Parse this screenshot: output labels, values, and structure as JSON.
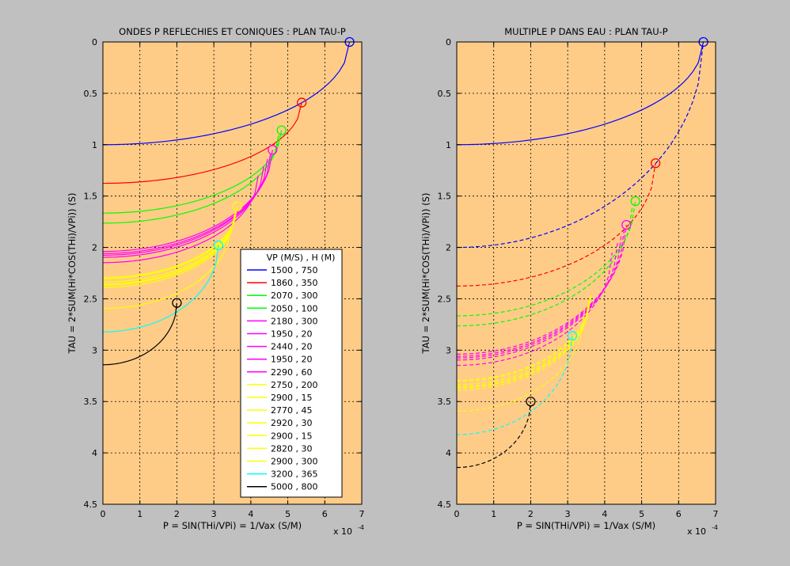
{
  "figure": {
    "background": "#c0c0c0",
    "axes_bg": "#ffcc88"
  },
  "legend": {
    "header": "VP (M/S) , H (M)",
    "entries": [
      {
        "label": "1500 , 750",
        "color": "#0000ff"
      },
      {
        "label": "1860 , 350",
        "color": "#ff0000"
      },
      {
        "label": "2070 , 300",
        "color": "#00ff00"
      },
      {
        "label": "2050 , 100",
        "color": "#00ff00"
      },
      {
        "label": "2180 , 300",
        "color": "#ff00ff"
      },
      {
        "label": "1950 , 20",
        "color": "#ff00ff"
      },
      {
        "label": "2440 , 20",
        "color": "#ff00ff"
      },
      {
        "label": "1950 , 20",
        "color": "#ff00ff"
      },
      {
        "label": "2290 , 60",
        "color": "#ff00ff"
      },
      {
        "label": "2750 , 200",
        "color": "#ffff00"
      },
      {
        "label": "2900 , 15",
        "color": "#ffff00"
      },
      {
        "label": "2770 , 45",
        "color": "#ffff00"
      },
      {
        "label": "2920 , 30",
        "color": "#ffff00"
      },
      {
        "label": "2900 , 15",
        "color": "#ffff00"
      },
      {
        "label": "2820 , 30",
        "color": "#ffff00"
      },
      {
        "label": "2900 , 300",
        "color": "#ffff00"
      },
      {
        "label": "3200 , 365",
        "color": "#00ffff"
      },
      {
        "label": "5000 , 800",
        "color": "#000000"
      }
    ]
  },
  "chart_data": [
    {
      "type": "line",
      "title": "ONDES P REFLECHIES ET CONIQUES : PLAN TAU-P",
      "xlabel": "P = SIN(THi/VPi) = 1/Vax (S/M)",
      "ylabel": "TAU = 2*SUM(Hi*COS(THi)/VPi)) (S)",
      "x_multiplier": "x 10",
      "x_exponent": "-4",
      "xlim": [
        0,
        7
      ],
      "ylim": [
        0,
        4.5
      ],
      "y_reversed": true,
      "xticks": [
        "0",
        "1",
        "2",
        "3",
        "4",
        "5",
        "6",
        "7"
      ],
      "yticks": [
        "0",
        "0.5",
        "1",
        "1.5",
        "2",
        "2.5",
        "3",
        "3.5",
        "4",
        "4.5"
      ],
      "grid": true,
      "line_style": "solid",
      "series": [
        {
          "color": "#0000ff",
          "tau0": 1.0,
          "pend": 6.67,
          "tauend": 0.0
        },
        {
          "color": "#ff0000",
          "tau0": 1.376,
          "pend": 5.376,
          "tauend": 0.59
        },
        {
          "color": "#00ff00",
          "tau0": 1.666,
          "pend": 4.831,
          "tauend": 0.86
        },
        {
          "color": "#00ff00",
          "tau0": 1.764,
          "pend": 4.75,
          "tauend": 0.91
        },
        {
          "color": "#ff00ff",
          "tau0": 2.039,
          "pend": 4.587,
          "tauend": 1.05
        },
        {
          "color": "#ff00ff",
          "tau0": 2.06,
          "pend": 4.53,
          "tauend": 1.09
        },
        {
          "color": "#ff00ff",
          "tau0": 2.076,
          "pend": 4.45,
          "tauend": 1.14
        },
        {
          "color": "#ff00ff",
          "tau0": 2.096,
          "pend": 4.35,
          "tauend": 1.21
        },
        {
          "color": "#ff00ff",
          "tau0": 2.148,
          "pend": 4.2,
          "tauend": 1.3
        },
        {
          "color": "#ffff00",
          "tau0": 2.293,
          "pend": 3.636,
          "tauend": 1.6
        },
        {
          "color": "#ffff00",
          "tau0": 2.303,
          "pend": 3.62,
          "tauend": 1.62
        },
        {
          "color": "#ffff00",
          "tau0": 2.336,
          "pend": 3.6,
          "tauend": 1.64
        },
        {
          "color": "#ffff00",
          "tau0": 2.356,
          "pend": 3.58,
          "tauend": 1.66
        },
        {
          "color": "#ffff00",
          "tau0": 2.366,
          "pend": 3.56,
          "tauend": 1.68
        },
        {
          "color": "#ffff00",
          "tau0": 2.388,
          "pend": 3.55,
          "tauend": 1.7
        },
        {
          "color": "#ffff00",
          "tau0": 2.594,
          "pend": 3.45,
          "tauend": 1.8
        },
        {
          "color": "#00ffff",
          "tau0": 2.822,
          "pend": 3.125,
          "tauend": 1.98
        },
        {
          "color": "#000000",
          "tau0": 3.142,
          "pend": 2.0,
          "tauend": 2.54
        }
      ],
      "markers": [
        {
          "x": 6.67,
          "y": 0.0,
          "color": "#0000ff"
        },
        {
          "x": 5.376,
          "y": 0.59,
          "color": "#ff0000"
        },
        {
          "x": 4.831,
          "y": 0.86,
          "color": "#00ff00"
        },
        {
          "x": 4.587,
          "y": 1.05,
          "color": "#ff00ff"
        },
        {
          "x": 3.636,
          "y": 1.6,
          "color": "#ffff00"
        },
        {
          "x": 3.125,
          "y": 1.98,
          "color": "#00ffff"
        },
        {
          "x": 2.0,
          "y": 2.54,
          "color": "#000000"
        }
      ]
    },
    {
      "type": "line",
      "title": "MULTIPLE P DANS EAU : PLAN TAU-P",
      "xlabel": "P = SIN(THi/VPi) = 1/Vax (S/M)",
      "ylabel": "TAU = 2*SUM(Hi*COS(THi)/VPi)) (S)",
      "x_multiplier": "x 10",
      "x_exponent": "-4",
      "xlim": [
        0,
        7
      ],
      "ylim": [
        0,
        4.5
      ],
      "y_reversed": true,
      "xticks": [
        "0",
        "1",
        "2",
        "3",
        "4",
        "5",
        "6",
        "7"
      ],
      "yticks": [
        "0",
        "0.5",
        "1",
        "1.5",
        "2",
        "2.5",
        "3",
        "3.5",
        "4",
        "4.5"
      ],
      "grid": true,
      "series": [
        {
          "color": "#0000ff",
          "tau0": 1.0,
          "pend": 6.67,
          "tauend": 0.0,
          "style": "solid"
        },
        {
          "color": "#0000ff",
          "tau0": 2.0,
          "pend": 6.67,
          "tauend": 0.0,
          "style": "dashed"
        },
        {
          "color": "#ff0000",
          "tau0": 2.376,
          "pend": 5.376,
          "tauend": 1.18,
          "style": "dashed"
        },
        {
          "color": "#00ff00",
          "tau0": 2.666,
          "pend": 4.831,
          "tauend": 1.55,
          "style": "dashed"
        },
        {
          "color": "#00ff00",
          "tau0": 2.764,
          "pend": 4.75,
          "tauend": 1.6,
          "style": "dashed"
        },
        {
          "color": "#ff00ff",
          "tau0": 3.039,
          "pend": 4.587,
          "tauend": 1.78,
          "style": "dashed"
        },
        {
          "color": "#ff00ff",
          "tau0": 3.06,
          "pend": 4.53,
          "tauend": 1.82,
          "style": "dashed"
        },
        {
          "color": "#ff00ff",
          "tau0": 3.076,
          "pend": 4.45,
          "tauend": 1.88,
          "style": "dashed"
        },
        {
          "color": "#ff00ff",
          "tau0": 3.096,
          "pend": 4.35,
          "tauend": 1.95,
          "style": "dashed"
        },
        {
          "color": "#ff00ff",
          "tau0": 3.148,
          "pend": 4.2,
          "tauend": 2.05,
          "style": "dashed"
        },
        {
          "color": "#ffff00",
          "tau0": 3.293,
          "pend": 3.636,
          "tauend": 2.45,
          "style": "dashed"
        },
        {
          "color": "#ffff00",
          "tau0": 3.303,
          "pend": 3.62,
          "tauend": 2.47,
          "style": "dashed"
        },
        {
          "color": "#ffff00",
          "tau0": 3.336,
          "pend": 3.6,
          "tauend": 2.5,
          "style": "dashed"
        },
        {
          "color": "#ffff00",
          "tau0": 3.356,
          "pend": 3.58,
          "tauend": 2.52,
          "style": "dashed"
        },
        {
          "color": "#ffff00",
          "tau0": 3.366,
          "pend": 3.56,
          "tauend": 2.54,
          "style": "dashed"
        },
        {
          "color": "#ffff00",
          "tau0": 3.388,
          "pend": 3.55,
          "tauend": 2.56,
          "style": "dashed"
        },
        {
          "color": "#ffff00",
          "tau0": 3.594,
          "pend": 3.45,
          "tauend": 2.65,
          "style": "dashed"
        },
        {
          "color": "#00ffff",
          "tau0": 3.822,
          "pend": 3.125,
          "tauend": 2.86,
          "style": "dashed"
        },
        {
          "color": "#000000",
          "tau0": 4.142,
          "pend": 2.0,
          "tauend": 3.5,
          "style": "dashed"
        }
      ],
      "markers": [
        {
          "x": 6.67,
          "y": 0.0,
          "color": "#0000ff"
        },
        {
          "x": 5.376,
          "y": 1.18,
          "color": "#ff0000"
        },
        {
          "x": 4.831,
          "y": 1.55,
          "color": "#00ff00"
        },
        {
          "x": 4.587,
          "y": 1.78,
          "color": "#ff00ff"
        },
        {
          "x": 3.125,
          "y": 2.86,
          "color": "#00ffff"
        },
        {
          "x": 2.0,
          "y": 3.5,
          "color": "#000000"
        }
      ]
    }
  ]
}
